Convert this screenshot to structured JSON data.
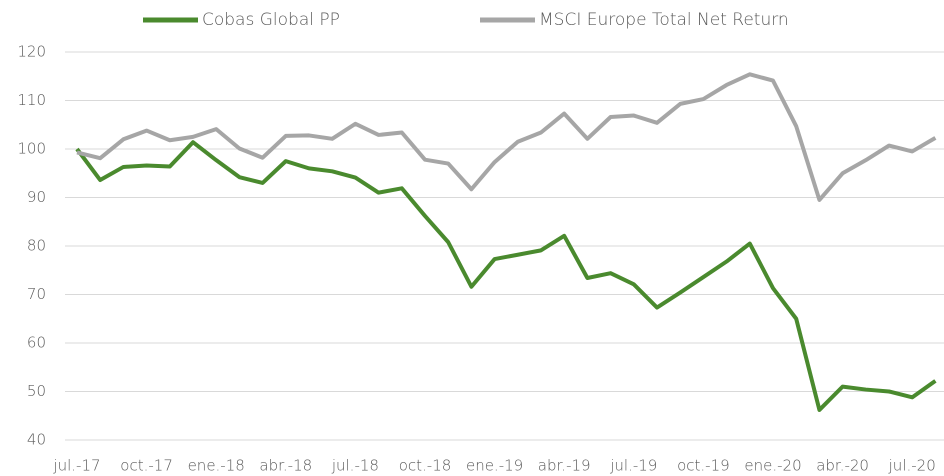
{
  "chart_data": {
    "type": "line",
    "categories": [
      "jul.-17",
      null,
      null,
      "oct.-17",
      null,
      null,
      "ene.-18",
      null,
      null,
      "abr.-18",
      null,
      null,
      "jul.-18",
      null,
      null,
      "oct.-18",
      null,
      null,
      "ene.-19",
      null,
      null,
      "abr.-19",
      null,
      null,
      "jul.-19",
      null,
      null,
      "oct.-19",
      null,
      null,
      "ene.-20",
      null,
      null,
      "abr.-20",
      null,
      null,
      "jul.-20",
      null
    ],
    "series": [
      {
        "name": "Cobas Global PP",
        "color": "#4a8a2e",
        "values": [
          100,
          93.6,
          96.3,
          96.6,
          96.4,
          101.4,
          97.7,
          94.2,
          93,
          97.5,
          96,
          95.4,
          94.1,
          91,
          91.9,
          86.2,
          80.8,
          71.6,
          77.3,
          78.2,
          79.1,
          82.1,
          73.4,
          74.4,
          72.1,
          67.3,
          70.4,
          73.6,
          76.8,
          80.5,
          71.3,
          65,
          46.2,
          51,
          50.4,
          50,
          48.8,
          52.2
        ]
      },
      {
        "name": "MSCI Europe Total Net Return",
        "color": "#a6a6a6",
        "values": [
          99.3,
          98.1,
          102,
          103.8,
          101.8,
          102.5,
          104.1,
          100.1,
          98.2,
          102.7,
          102.8,
          102.1,
          105.2,
          102.9,
          103.4,
          97.8,
          97,
          91.7,
          97.3,
          101.5,
          103.4,
          107.3,
          102.1,
          106.6,
          106.9,
          105.4,
          109.3,
          110.3,
          113.2,
          115.4,
          114.1,
          104.7,
          89.5,
          95,
          97.7,
          100.7,
          99.5,
          102.3
        ]
      }
    ],
    "ylim": [
      40,
      120
    ],
    "yticks": [
      40,
      50,
      60,
      70,
      80,
      90,
      100,
      110,
      120
    ],
    "grid": true,
    "legend": "top"
  }
}
